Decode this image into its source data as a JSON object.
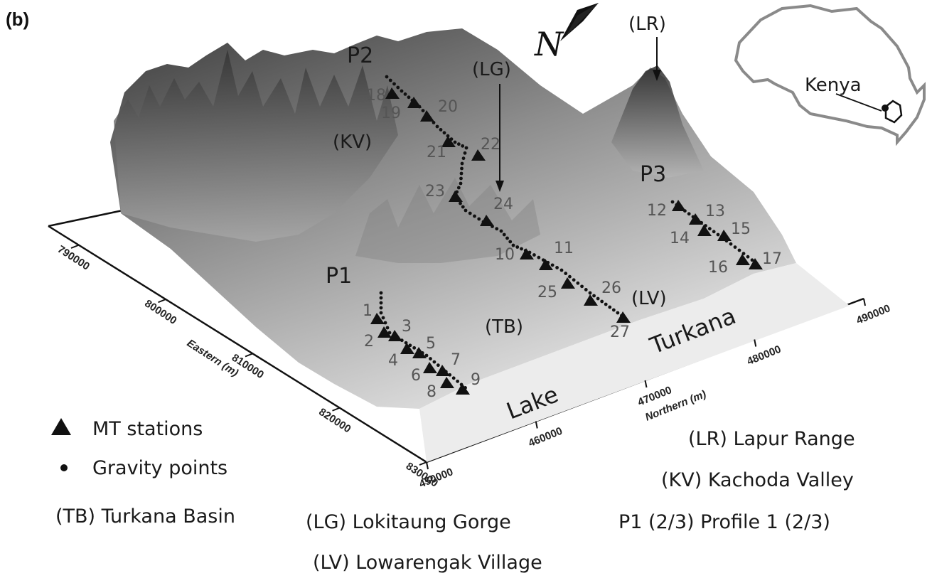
{
  "panel_label": "(b)",
  "north_label": "N",
  "lapur_marker": "(LR)",
  "lokitaung_marker": "(LG)",
  "kachoda_marker": "(KV)",
  "lowarengak_marker": "(LV)",
  "basin_marker": "(TB)",
  "inset": {
    "country_label": "Kenya"
  },
  "lake_words": [
    "Lake",
    "Turkana"
  ],
  "profiles": [
    {
      "name": "P1",
      "stations": [
        "1",
        "2",
        "3",
        "4",
        "5",
        "6",
        "7",
        "8",
        "9"
      ]
    },
    {
      "name": "P2",
      "stations": [
        "18",
        "19",
        "20",
        "21",
        "22",
        "23",
        "24",
        "10",
        "11",
        "25",
        "26",
        "27"
      ]
    },
    {
      "name": "P3",
      "stations": [
        "12",
        "13",
        "14",
        "15",
        "16",
        "17"
      ]
    }
  ],
  "axes": {
    "eastern": {
      "title": "Eastern (m)",
      "ticks": [
        "790000",
        "800000",
        "810000",
        "820000",
        "830000"
      ]
    },
    "northern": {
      "title": "Northern (m)",
      "ticks": [
        "450000",
        "460000",
        "470000",
        "480000",
        "490000"
      ]
    }
  },
  "legend": {
    "mt_stations": "MT stations",
    "gravity_points": "Gravity points",
    "lr": "(LR) Lapur Range",
    "kv": "(KV) Kachoda Valley",
    "tb": "(TB) Turkana Basin",
    "lg": "(LG) Lokitaung Gorge",
    "profiles": "P1 (2/3) Profile 1 (2/3)",
    "lv": "(LV) Lowarengak Village"
  },
  "colors": {
    "terrain_dark": "#3a3a3a",
    "terrain_light": "#e6e6e6",
    "lake": "#ececec",
    "marker": "#111111"
  }
}
